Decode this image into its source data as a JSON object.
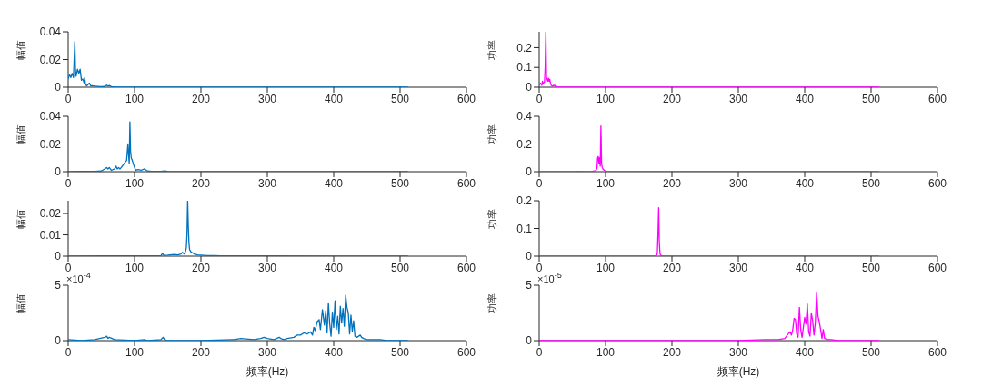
{
  "chart_data": [
    {
      "type": "line",
      "ylabel": "幅值",
      "xlim": [
        0,
        600
      ],
      "xticks": [
        0,
        100,
        200,
        300,
        400,
        500,
        600
      ],
      "ylim": [
        0,
        0.04
      ],
      "yticks": [
        0,
        0.02,
        0.04
      ],
      "series": [
        {
          "color": "#0072bd",
          "x": [
            0,
            2,
            4,
            6,
            8,
            10,
            11,
            12,
            14,
            16,
            18,
            20,
            22,
            24,
            25,
            26,
            28,
            30,
            32,
            34,
            36,
            40,
            45,
            50,
            55,
            58,
            60,
            62,
            65,
            70,
            80,
            100,
            150,
            200,
            300,
            400,
            512
          ],
          "values": [
            0.006,
            0.009,
            0.007,
            0.01,
            0.007,
            0.033,
            0.012,
            0.008,
            0.013,
            0.01,
            0.013,
            0.005,
            0.006,
            0.003,
            0.007,
            0.002,
            0.001,
            0.002,
            0.003,
            0.001,
            0.001,
            0.0008,
            0.0006,
            0.0004,
            0.0005,
            0.0015,
            0.0008,
            0.0012,
            0.0004,
            0.0002,
            0.0001,
            0.0001,
            0,
            0,
            0,
            0,
            0
          ]
        }
      ]
    },
    {
      "type": "line",
      "ylabel": "功率",
      "xlim": [
        0,
        600
      ],
      "xticks": [
        0,
        100,
        200,
        300,
        400,
        500,
        600
      ],
      "ylim": [
        0,
        0.28
      ],
      "yticks": [
        0,
        0.1,
        0.2
      ],
      "series": [
        {
          "color": "#ff00ff",
          "x": [
            0,
            2,
            4,
            5,
            6,
            8,
            9,
            10,
            11,
            12,
            13,
            14,
            15,
            16,
            17,
            18,
            20,
            22,
            24,
            25,
            26,
            28,
            30,
            40,
            100,
            200,
            300,
            400,
            512
          ],
          "values": [
            0.01,
            0.02,
            0.01,
            0.03,
            0.02,
            0.025,
            0.1,
            0.28,
            0.05,
            0.04,
            0.03,
            0.045,
            0.03,
            0.04,
            0.02,
            0.01,
            0.005,
            0.01,
            0.005,
            0.012,
            0.003,
            0.001,
            0.001,
            0,
            0,
            0,
            0,
            0,
            0
          ]
        }
      ]
    },
    {
      "type": "line",
      "ylabel": "幅值",
      "xlim": [
        0,
        600
      ],
      "xticks": [
        0,
        100,
        200,
        300,
        400,
        500,
        600
      ],
      "ylim": [
        0,
        0.04
      ],
      "yticks": [
        0,
        0.02,
        0.04
      ],
      "series": [
        {
          "color": "#0072bd",
          "x": [
            0,
            20,
            40,
            50,
            55,
            58,
            60,
            62,
            65,
            70,
            72,
            74,
            76,
            78,
            80,
            83,
            86,
            88,
            90,
            91,
            92,
            93,
            94,
            95,
            96,
            98,
            100,
            102,
            105,
            110,
            115,
            118,
            120,
            125,
            130,
            140,
            145,
            150,
            200,
            300,
            512
          ],
          "values": [
            0,
            0.0002,
            0.0003,
            0.0005,
            0.002,
            0.003,
            0.002,
            0.003,
            0.001,
            0.002,
            0.004,
            0.002,
            0.003,
            0.002,
            0.003,
            0.005,
            0.007,
            0.008,
            0.02,
            0.012,
            0.006,
            0.036,
            0.015,
            0.01,
            0.009,
            0.006,
            0.003,
            0.001,
            0.0015,
            0.001,
            0.002,
            0.001,
            0.0005,
            0.0003,
            0.0002,
            0.0003,
            0.0005,
            0.0002,
            0.0001,
            0,
            0
          ]
        }
      ]
    },
    {
      "type": "line",
      "ylabel": "功率",
      "xlim": [
        0,
        600
      ],
      "xticks": [
        0,
        100,
        200,
        300,
        400,
        500,
        600
      ],
      "ylim": [
        0,
        0.4
      ],
      "yticks": [
        0,
        0.2,
        0.4
      ],
      "series": [
        {
          "color": "#ff00ff",
          "x": [
            0,
            50,
            60,
            70,
            80,
            85,
            87,
            88,
            89,
            90,
            91,
            92,
            93,
            94,
            95,
            96,
            98,
            100,
            105,
            150,
            300,
            512
          ],
          "values": [
            0,
            0.001,
            0.002,
            0.001,
            0.003,
            0.008,
            0.02,
            0.1,
            0.11,
            0.06,
            0.1,
            0.04,
            0.33,
            0.06,
            0.03,
            0.02,
            0.01,
            0.003,
            0.001,
            0,
            0,
            0
          ]
        }
      ]
    },
    {
      "type": "line",
      "ylabel": "幅值",
      "xlim": [
        0,
        600
      ],
      "xticks": [
        0,
        100,
        200,
        300,
        400,
        500,
        600
      ],
      "ylim": [
        0,
        0.026
      ],
      "yticks": [
        0,
        0.01,
        0.02
      ],
      "series": [
        {
          "color": "#0072bd",
          "x": [
            0,
            50,
            100,
            140,
            142,
            144,
            150,
            160,
            165,
            170,
            172,
            175,
            177,
            178,
            179,
            180,
            181,
            182,
            183,
            185,
            188,
            190,
            195,
            200,
            210,
            220,
            230,
            250,
            300,
            400,
            512
          ],
          "values": [
            0,
            0.0001,
            0.0002,
            0.0003,
            0.0013,
            0.0004,
            0.0005,
            0.0008,
            0.0006,
            0.001,
            0.0018,
            0.001,
            0.0025,
            0.004,
            0.01,
            0.026,
            0.014,
            0.006,
            0.003,
            0.002,
            0.0015,
            0.001,
            0.0006,
            0.0005,
            0.0003,
            0.0003,
            0.0002,
            0.0001,
            0.0001,
            0,
            0
          ]
        }
      ]
    },
    {
      "type": "line",
      "ylabel": "功率",
      "xlim": [
        0,
        600
      ],
      "xticks": [
        0,
        100,
        200,
        300,
        400,
        500,
        600
      ],
      "ylim": [
        0,
        0.2
      ],
      "yticks": [
        0,
        0.1,
        0.2
      ],
      "series": [
        {
          "color": "#ff00ff",
          "x": [
            0,
            100,
            170,
            175,
            177,
            178,
            179,
            180,
            181,
            182,
            183,
            185,
            190,
            200,
            300,
            512
          ],
          "values": [
            0,
            0,
            0,
            0.001,
            0.003,
            0.01,
            0.08,
            0.175,
            0.05,
            0.01,
            0.003,
            0.001,
            0,
            0,
            0,
            0
          ]
        }
      ]
    },
    {
      "type": "line",
      "ylabel": "幅值",
      "xlabel": "频率(Hz)",
      "annotations": [
        "×10$^{-4}$"
      ],
      "xlim": [
        0,
        600
      ],
      "xticks": [
        0,
        100,
        200,
        300,
        400,
        500,
        600
      ],
      "ylim": [
        0,
        5
      ],
      "yticks": [
        0,
        5
      ],
      "series": [
        {
          "color": "#0072bd",
          "x": [
            0,
            20,
            40,
            55,
            58,
            60,
            62,
            70,
            100,
            115,
            120,
            140,
            143,
            145,
            150,
            200,
            250,
            260,
            280,
            290,
            295,
            300,
            310,
            318,
            320,
            325,
            330,
            340,
            345,
            350,
            355,
            360,
            365,
            368,
            370,
            372,
            375,
            378,
            380,
            383,
            386,
            388,
            390,
            392,
            394,
            396,
            398,
            400,
            402,
            404,
            406,
            408,
            410,
            412,
            414,
            416,
            418,
            420,
            422,
            424,
            426,
            428,
            430,
            432,
            435,
            440,
            442,
            445,
            450,
            460,
            470,
            480,
            500,
            512
          ],
          "values": [
            0.1,
            0,
            0.1,
            0.3,
            0.4,
            0.2,
            0.3,
            0.1,
            0,
            0.1,
            0,
            0.1,
            0.3,
            0.1,
            0,
            0,
            0.1,
            0.2,
            0.1,
            0.2,
            0.3,
            0.2,
            0.1,
            0.3,
            0.2,
            0.1,
            0.2,
            0.3,
            0.5,
            0.5,
            0.7,
            0.6,
            0.8,
            0.5,
            1.2,
            0.9,
            1.7,
            1.9,
            1.0,
            2.8,
            1.4,
            2.7,
            0.7,
            3.4,
            1.5,
            0.4,
            2.6,
            1.2,
            3.6,
            1.0,
            2.2,
            0.6,
            3.1,
            1.6,
            2.9,
            1.3,
            4.1,
            3.0,
            2.5,
            0.6,
            2.3,
            0.8,
            1.8,
            0.4,
            0.3,
            0.5,
            0.3,
            0.2,
            0.1,
            0.1,
            0.1,
            0,
            0,
            0
          ]
        }
      ]
    },
    {
      "type": "line",
      "ylabel": "功率",
      "xlabel": "频率(Hz)",
      "annotations": [
        "×10$^{-5}$"
      ],
      "xlim": [
        0,
        600
      ],
      "xticks": [
        0,
        100,
        200,
        300,
        400,
        500,
        600
      ],
      "ylim": [
        0,
        5
      ],
      "yticks": [
        0,
        5
      ],
      "series": [
        {
          "color": "#ff00ff",
          "x": [
            0,
            100,
            200,
            300,
            340,
            360,
            370,
            375,
            378,
            380,
            382,
            384,
            386,
            388,
            390,
            392,
            394,
            396,
            398,
            400,
            402,
            404,
            406,
            408,
            410,
            412,
            414,
            416,
            418,
            420,
            422,
            424,
            426,
            428,
            430,
            435,
            440,
            450,
            512
          ],
          "values": [
            0,
            0,
            0,
            0,
            0.1,
            0.1,
            0.2,
            0.6,
            0.8,
            0.5,
            1.0,
            2.0,
            1.9,
            0.6,
            0.3,
            3.0,
            1.0,
            0.3,
            1.2,
            2.1,
            1.5,
            3.3,
            0.8,
            0.4,
            2.5,
            1.8,
            0.5,
            1.6,
            4.4,
            2.2,
            1.7,
            1.0,
            0.2,
            1.0,
            0.2,
            0.1,
            0.1,
            0,
            0
          ]
        }
      ]
    }
  ]
}
